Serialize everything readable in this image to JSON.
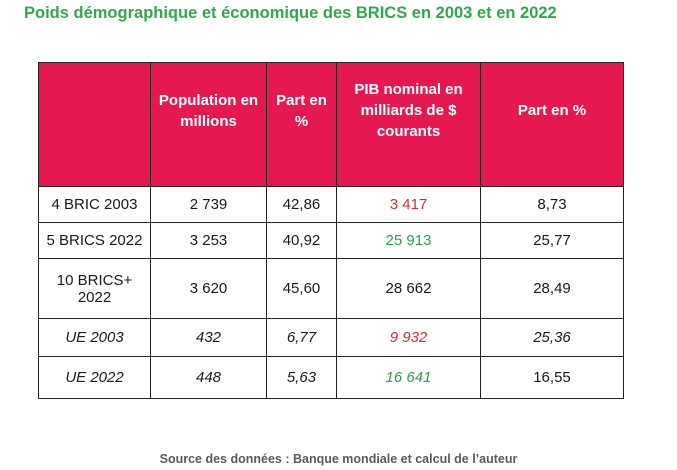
{
  "title": "Poids démographique et économique des BRICS en 2003 et en 2022",
  "table": {
    "headers": [
      "",
      "Population en millions",
      "Part en %",
      "PIB nominal en milliards de $ courants",
      "Part en %"
    ],
    "rows": [
      {
        "label": "4 BRIC 2003",
        "population": "2 739",
        "part_pop": "42,86",
        "pib": "3 417",
        "part_pib": "8,73"
      },
      {
        "label": "5 BRICS 2022",
        "population": "3 253",
        "part_pop": "40,92",
        "pib": "25 913",
        "part_pib": "25,77"
      },
      {
        "label": "10 BRICS+ 2022",
        "population": "3 620",
        "part_pop": "45,60",
        "pib": "28 662",
        "part_pib": "28,49"
      },
      {
        "label": "UE 2003",
        "population": "432",
        "part_pop": "6,77",
        "pib": "9 932",
        "part_pib": "25,36"
      },
      {
        "label": "UE 2022",
        "population": "448",
        "part_pop": "5,63",
        "pib": "16 641",
        "part_pib": "16,55"
      }
    ]
  },
  "colors": {
    "title": "#2eaa4b",
    "header_bg": "#e5194f",
    "red": "#d32f2f",
    "green": "#2e9e4f"
  },
  "source": "Source des données : Banque mondiale et calcul de l’auteur"
}
